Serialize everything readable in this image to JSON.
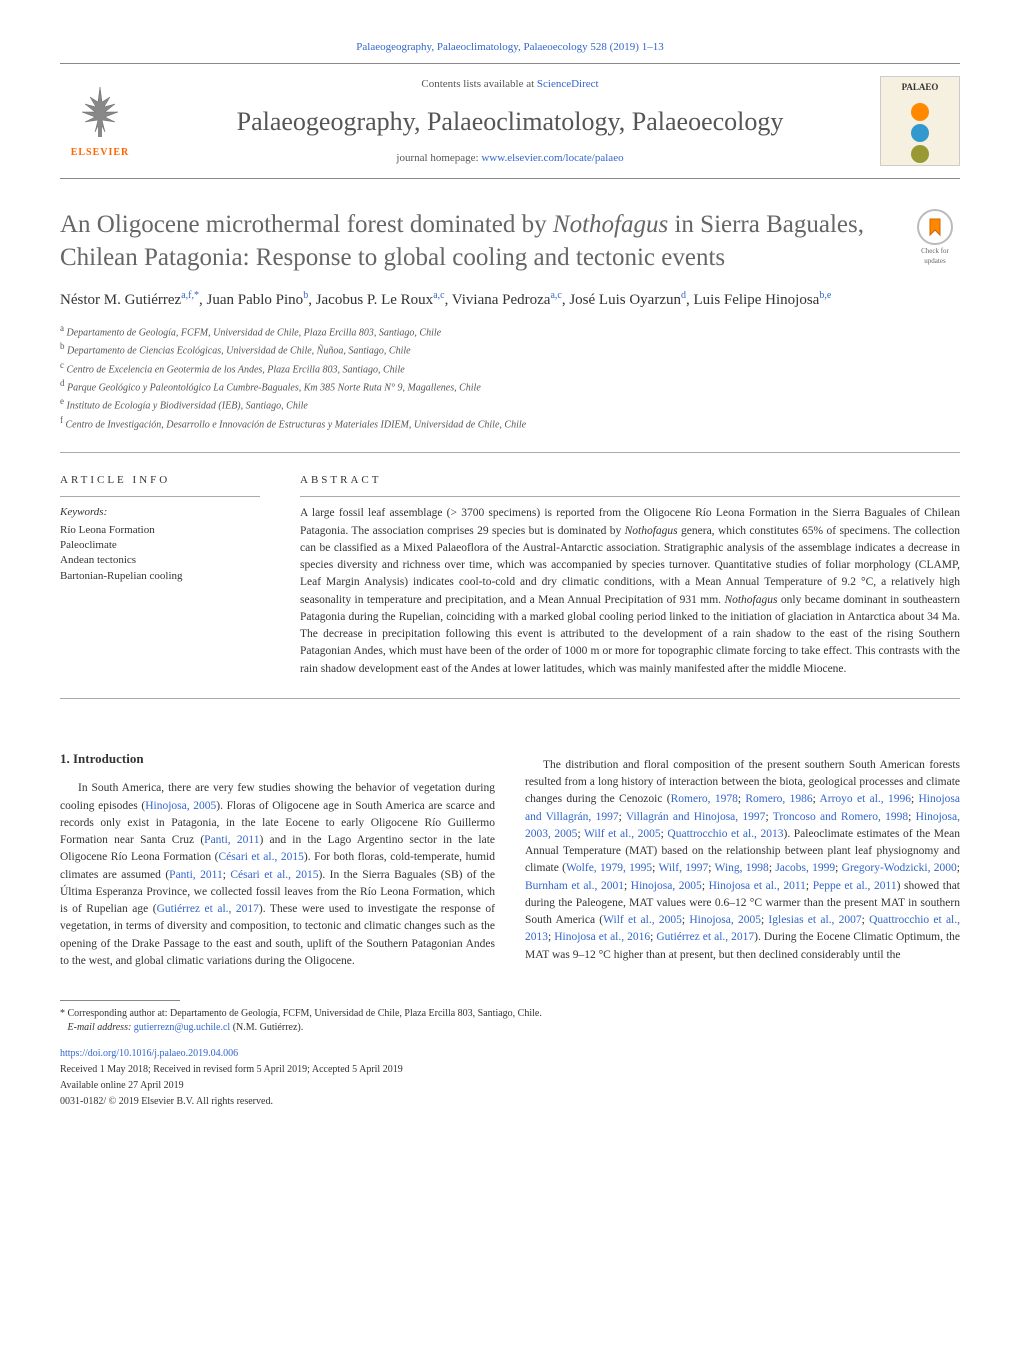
{
  "journal_ref": "Palaeogeography, Palaeoclimatology, Palaeoecology 528 (2019) 1–13",
  "contents_line_pre": "Contents lists available at ",
  "contents_line_link": "ScienceDirect",
  "journal_title": "Palaeogeography, Palaeoclimatology, Palaeoecology",
  "homepage_pre": "journal homepage: ",
  "homepage_link": "www.elsevier.com/locate/palaeo",
  "elsevier_label": "ELSEVIER",
  "palaeo_label": "PALAEO",
  "palaeo_colors": [
    "#ff8800",
    "#3399cc",
    "#999933"
  ],
  "article_title_pre": "An Oligocene microthermal forest dominated by ",
  "article_title_italic": "Nothofagus",
  "article_title_post": " in Sierra Baguales, Chilean Patagonia: Response to global cooling and tectonic events",
  "check_updates": "Check for updates",
  "authors_html": "Néstor M. Gutiérrez<sup>a,f,*</sup>, Juan Pablo Pino<sup>b</sup>, Jacobus P. Le Roux<sup>a,c</sup>, Viviana Pedroza<sup>a,c</sup>, José Luis Oyarzun<sup>d</sup>, Luis Felipe Hinojosa<sup>b,e</sup>",
  "affiliations": [
    {
      "sup": "a",
      "text": " Departamento de Geología, FCFM, Universidad de Chile, Plaza Ercilla 803, Santiago, Chile"
    },
    {
      "sup": "b",
      "text": " Departamento de Ciencias Ecológicas, Universidad de Chile, Ñuñoa, Santiago, Chile"
    },
    {
      "sup": "c",
      "text": " Centro de Excelencia en Geotermia de los Andes, Plaza Ercilla 803, Santiago, Chile"
    },
    {
      "sup": "d",
      "text": " Parque Geológico y Paleontológico La Cumbre-Baguales, Km 385 Norte Ruta N° 9, Magallenes, Chile"
    },
    {
      "sup": "e",
      "text": " Instituto de Ecología y Biodiversidad (IEB), Santiago, Chile"
    },
    {
      "sup": "f",
      "text": " Centro de Investigación, Desarrollo e Innovación de Estructuras y Materiales IDIEM, Universidad de Chile, Chile"
    }
  ],
  "article_info_heading": "ARTICLE INFO",
  "keywords_label": "Keywords:",
  "keywords": [
    "Río Leona Formation",
    "Paleoclimate",
    "Andean tectonics",
    "Bartonian-Rupelian cooling"
  ],
  "abstract_heading": "ABSTRACT",
  "abstract": "A large fossil leaf assemblage (> 3700 specimens) is reported from the Oligocene Río Leona Formation in the Sierra Baguales of Chilean Patagonia. The association comprises 29 species but is dominated by Nothofagus genera, which constitutes 65% of specimens. The collection can be classified as a Mixed Palaeoflora of the Austral-Antarctic association. Stratigraphic analysis of the assemblage indicates a decrease in species diversity and richness over time, which was accompanied by species turnover. Quantitative studies of foliar morphology (CLAMP, Leaf Margin Analysis) indicates cool-to-cold and dry climatic conditions, with a Mean Annual Temperature of 9.2 °C, a relatively high seasonality in temperature and precipitation, and a Mean Annual Precipitation of 931 mm. Nothofagus only became dominant in southeastern Patagonia during the Rupelian, coinciding with a marked global cooling period linked to the initiation of glaciation in Antarctica about 34 Ma. The decrease in precipitation following this event is attributed to the development of a rain shadow to the east of the rising Southern Patagonian Andes, which must have been of the order of 1000 m or more for topographic climate forcing to take effect. This contrasts with the rain shadow development east of the Andes at lower latitudes, which was mainly manifested after the middle Miocene.",
  "section_1_heading": "1. Introduction",
  "intro_col1": "In South America, there are very few studies showing the behavior of vegetation during cooling episodes (Hinojosa, 2005). Floras of Oligocene age in South America are scarce and records only exist in Patagonia, in the late Eocene to early Oligocene Río Guillermo Formation near Santa Cruz (Panti, 2011) and in the Lago Argentino sector in the late Oligocene Río Leona Formation (Césari et al., 2015). For both floras, cold-temperate, humid climates are assumed (Panti, 2011; Césari et al., 2015). In the Sierra Baguales (SB) of the Última Esperanza Province, we collected fossil leaves from the Río Leona Formation, which is of Rupelian age (Gutiérrez et al., 2017). These were used to investigate the response of vegetation, in terms of diversity and composition, to tectonic and climatic changes such as the opening of the Drake Passage to the east and south, uplift of the Southern Patagonian Andes to the west, and global climatic variations during the Oligocene.",
  "intro_col2": "The distribution and floral composition of the present southern South American forests resulted from a long history of interaction between the biota, geological processes and climate changes during the Cenozoic (Romero, 1978; Romero, 1986; Arroyo et al., 1996; Hinojosa and Villagrán, 1997; Villagrán and Hinojosa, 1997; Troncoso and Romero, 1998; Hinojosa, 2003, 2005; Wilf et al., 2005; Quattrocchio et al., 2013). Paleoclimate estimates of the Mean Annual Temperature (MAT) based on the relationship between plant leaf physiognomy and climate (Wolfe, 1979, 1995; Wilf, 1997; Wing, 1998; Jacobs, 1999; Gregory-Wodzicki, 2000; Burnham et al., 2001; Hinojosa, 2005; Hinojosa et al., 2011; Peppe et al., 2011) showed that during the Paleogene, MAT values were 0.6–12 °C warmer than the present MAT in southern South America (Wilf et al., 2005; Hinojosa, 2005; Iglesias et al., 2007; Quattrocchio et al., 2013; Hinojosa et al., 2016; Gutiérrez et al., 2017). During the Eocene Climatic Optimum, the MAT was 9–12 °C higher than at present, but then declined considerably until the",
  "corresponding": "* Corresponding author at: Departamento de Geología, FCFM, Universidad de Chile, Plaza Ercilla 803, Santiago, Chile.",
  "email_label": "E-mail address: ",
  "email": "gutierrezn@ug.uchile.cl",
  "email_author": " (N.M. Gutiérrez).",
  "doi": "https://doi.org/10.1016/j.palaeo.2019.04.006",
  "received": "Received 1 May 2018; Received in revised form 5 April 2019; Accepted 5 April 2019",
  "available_online": "Available online 27 April 2019",
  "copyright": "0031-0182/ © 2019 Elsevier B.V. All rights reserved.",
  "citations_col1": [
    "Hinojosa, 2005",
    "Panti, 2011",
    "Césari et al., 2015",
    "Panti, 2011",
    "Césari et al., 2015",
    "Gutiérrez et al., 2017"
  ],
  "citations_col2": [
    "Romero, 1978",
    "Romero, 1986",
    "Arroyo et al., 1996",
    "Hinojosa and Villagrán, 1997",
    "Villagrán and Hinojosa, 1997",
    "Troncoso and Romero, 1998",
    "Hinojosa, 2003, 2005",
    "Wilf et al., 2005",
    "Quattrocchio et al., 2013",
    "Wolfe, 1979, 1995",
    "Wilf, 1997",
    "Wing, 1998",
    "Jacobs, 1999",
    "Gregory-Wodzicki, 2000",
    "Burnham et al., 2001",
    "Hinojosa, 2005",
    "Hinojosa et al., 2011",
    "Peppe et al., 2011",
    "Wilf et al., 2005",
    "Hinojosa, 2005",
    "Iglesias et al., 2007",
    "Quattrocchio et al., 2013",
    "Hinojosa et al., 2016",
    "Gutiérrez et al., 2017"
  ]
}
